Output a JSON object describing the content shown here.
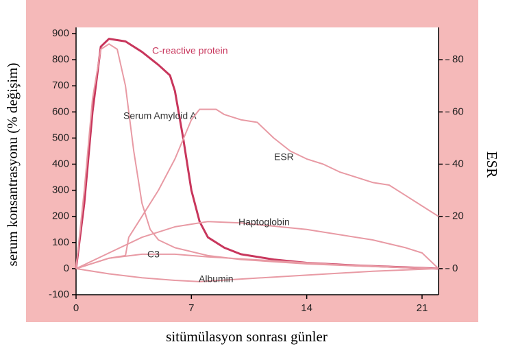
{
  "chart_data": {
    "type": "line",
    "xlabel": "sitümülasyon sonrası günler",
    "ylabel": "serum konsantrasyonu (% değişim)",
    "y2label": "ESR",
    "xlim": [
      0,
      22
    ],
    "ylim": [
      -100,
      900
    ],
    "y2lim": [
      -10,
      90
    ],
    "xticks": [
      0,
      7,
      14,
      21
    ],
    "yticks": [
      -100,
      0,
      100,
      200,
      300,
      400,
      500,
      600,
      700,
      800,
      900
    ],
    "y2ticks": [
      0,
      20,
      40,
      60,
      80
    ],
    "series": [
      {
        "name": "C-reactive protein",
        "color": "#c8365c",
        "x": [
          0,
          0.5,
          1,
          1.5,
          2,
          3,
          4,
          5,
          5.7,
          6,
          6.5,
          7,
          7.5,
          8,
          9,
          10,
          12,
          14,
          17,
          20,
          22
        ],
        "values": [
          0,
          250,
          600,
          850,
          880,
          870,
          830,
          780,
          740,
          680,
          500,
          300,
          180,
          120,
          80,
          55,
          35,
          22,
          12,
          5,
          0
        ]
      },
      {
        "name": "Serum Amyloid A",
        "color": "#e89aa4",
        "x": [
          0,
          0.5,
          1,
          1.5,
          2,
          2.5,
          3,
          3.5,
          4,
          4.5,
          5,
          6,
          8,
          10,
          14,
          18,
          22
        ],
        "values": [
          0,
          300,
          650,
          840,
          860,
          840,
          700,
          450,
          250,
          150,
          110,
          80,
          50,
          35,
          18,
          8,
          0
        ]
      },
      {
        "name": "ESR",
        "color": "#e89aa4",
        "axis": "y2",
        "x": [
          0,
          1,
          2,
          3,
          3.2,
          4,
          5,
          6,
          7,
          7.5,
          8.5,
          9,
          10,
          11,
          12,
          13,
          14,
          15,
          16,
          18,
          19,
          20,
          21,
          22
        ],
        "values": [
          0,
          2,
          4,
          5,
          12,
          20,
          30,
          42,
          57,
          61,
          61,
          59,
          57,
          56,
          50,
          45,
          42,
          40,
          37,
          33,
          32,
          28,
          24,
          20
        ]
      },
      {
        "name": "Haptoglobin",
        "color": "#e89aa4",
        "x": [
          0,
          2,
          4,
          6,
          8,
          10,
          14,
          18,
          20,
          21,
          22
        ],
        "values": [
          0,
          60,
          120,
          160,
          180,
          175,
          150,
          110,
          80,
          60,
          0
        ]
      },
      {
        "name": "C3",
        "color": "#e89aa4",
        "x": [
          0,
          2,
          4,
          6,
          8,
          12,
          16,
          20,
          22
        ],
        "values": [
          0,
          40,
          55,
          55,
          45,
          30,
          15,
          5,
          0
        ]
      },
      {
        "name": "Albumin",
        "color": "#e89aa4",
        "x": [
          0,
          2,
          4,
          6,
          7.5,
          10,
          14,
          18,
          22
        ],
        "values": [
          0,
          -20,
          -35,
          -45,
          -50,
          -40,
          -25,
          -10,
          0
        ]
      }
    ]
  }
}
